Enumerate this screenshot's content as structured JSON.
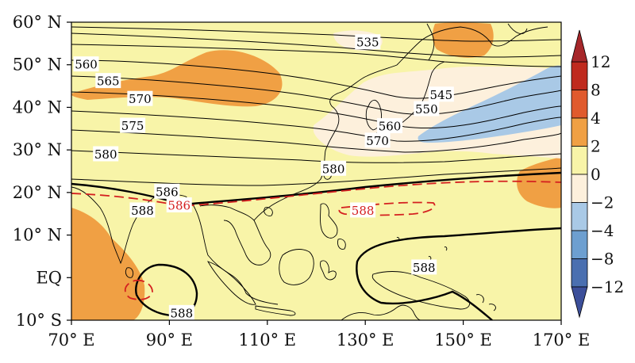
{
  "map": {
    "lat_ticks": [
      {
        "label": "60° N",
        "lat": 60
      },
      {
        "label": "50° N",
        "lat": 50
      },
      {
        "label": "40° N",
        "lat": 40
      },
      {
        "label": "30° N",
        "lat": 30
      },
      {
        "label": "20° N",
        "lat": 20
      },
      {
        "label": "10° N",
        "lat": 10
      },
      {
        "label": "EQ",
        "lat": 0
      },
      {
        "label": "10° S",
        "lat": -10
      }
    ],
    "lon_ticks": [
      {
        "label": "70° E",
        "lon": 70
      },
      {
        "label": "90° E",
        "lon": 90
      },
      {
        "label": "110° E",
        "lon": 110
      },
      {
        "label": "130° E",
        "lon": 130
      },
      {
        "label": "150° E",
        "lon": 150
      },
      {
        "label": "170° E",
        "lon": 170
      }
    ],
    "extent": {
      "lon": [
        70,
        170
      ],
      "lat": [
        -10,
        60
      ]
    },
    "contour_labels": [
      {
        "text": "535",
        "lon": 130.5,
        "lat": 55.3,
        "color": "#000000"
      },
      {
        "text": "560",
        "lon": 73.0,
        "lat": 50.1,
        "color": "#000000"
      },
      {
        "text": "565",
        "lon": 77.5,
        "lat": 46.2,
        "color": "#000000"
      },
      {
        "text": "570",
        "lon": 84.0,
        "lat": 42.0,
        "color": "#000000"
      },
      {
        "text": "575",
        "lon": 82.5,
        "lat": 35.7,
        "color": "#000000"
      },
      {
        "text": "580",
        "lon": 77.0,
        "lat": 29.0,
        "color": "#000000"
      },
      {
        "text": "545",
        "lon": 145.5,
        "lat": 43.0,
        "color": "#000000"
      },
      {
        "text": "550",
        "lon": 142.5,
        "lat": 39.6,
        "color": "#000000"
      },
      {
        "text": "560",
        "lon": 135.0,
        "lat": 35.6,
        "color": "#000000"
      },
      {
        "text": "570",
        "lon": 132.5,
        "lat": 32.2,
        "color": "#000000"
      },
      {
        "text": "580",
        "lon": 123.5,
        "lat": 25.6,
        "color": "#000000"
      },
      {
        "text": "586",
        "lon": 89.5,
        "lat": 20.2,
        "color": "#000000"
      },
      {
        "text": "588",
        "lon": 84.5,
        "lat": 15.8,
        "color": "#000000"
      },
      {
        "text": "586",
        "lon": 92.0,
        "lat": 17.0,
        "color": "#d42020"
      },
      {
        "text": "588",
        "lon": 129.5,
        "lat": 15.8,
        "color": "#d42020"
      },
      {
        "text": "588",
        "lon": 142.0,
        "lat": 2.4,
        "color": "#000000"
      },
      {
        "text": "588",
        "lon": 92.5,
        "lat": -8.3,
        "color": "#000000"
      }
    ]
  },
  "colorbar": {
    "tick_labels": [
      "12",
      "8",
      "4",
      "2",
      "0",
      "−2",
      "−4",
      "−8",
      "−12"
    ],
    "colors": [
      "#bf2a1e",
      "#e05a2d",
      "#f0a044",
      "#f8f4a8",
      "#fdf0dc",
      "#a9c9e6",
      "#6d9fd0",
      "#4a6fb0"
    ]
  },
  "colors": {
    "positive_light": "#f8f4a8",
    "positive_mid": "#f0a044",
    "negative_light": "#fdf0dc",
    "negative_mid": "#a9c9e6",
    "coast": "#000000",
    "anomaly_contour": "#d42020"
  }
}
